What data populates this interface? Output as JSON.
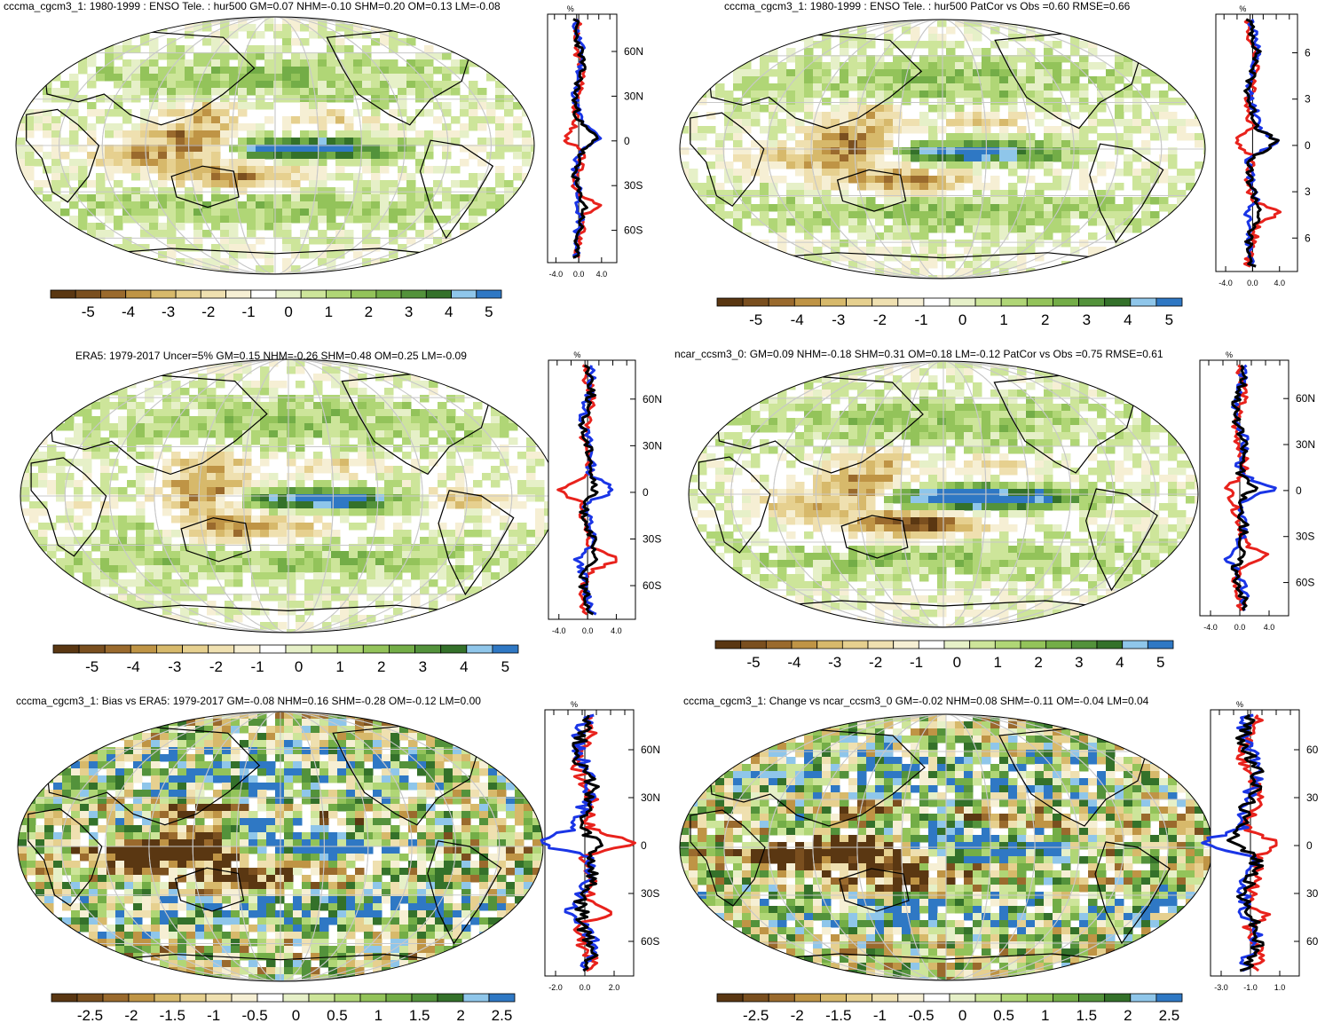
{
  "panels": [
    {
      "id": "p1",
      "title": "cccma_cgcm3_1: 1980-1999 : ENSO Tele. : hur500 GM=0.07 NHM=-0.10 SHM=0.20 OM=0.13 LM=-0.08",
      "colorbar_labels": [
        "-5",
        "-4",
        "-3",
        "-2",
        "-1",
        "0",
        "1",
        "2",
        "3",
        "4",
        "5"
      ],
      "profile_unit": "%",
      "profile_lat_labels": [
        "60N",
        "30N",
        "0",
        "30S",
        "60S"
      ],
      "profile_x_labels": [
        "-4.0",
        "0.0",
        "4.0"
      ]
    },
    {
      "id": "p2",
      "title": "cccma_cgcm3_1: 1980-1999 : ENSO Tele. : hur500 PatCor vs Obs =0.60 RMSE=0.66",
      "colorbar_labels": [
        "-5",
        "-4",
        "-3",
        "-2",
        "-1",
        "0",
        "1",
        "2",
        "3",
        "4",
        "5"
      ],
      "profile_unit": "%",
      "profile_lat_labels": [
        "6",
        "3",
        "0",
        "3",
        "6"
      ],
      "profile_x_labels": [
        "-4.0",
        "0.0",
        "4.0"
      ]
    },
    {
      "id": "p3",
      "title": "ERA5: 1979-2017 Uncer=5% GM=0.15 NHM=-0.26 SHM=0.48 OM=0.25 LM=-0.09",
      "colorbar_labels": [
        "-5",
        "-4",
        "-3",
        "-2",
        "-1",
        "0",
        "1",
        "2",
        "3",
        "4",
        "5"
      ],
      "profile_unit": "%",
      "profile_lat_labels": [
        "60N",
        "30N",
        "0",
        "30S",
        "60S"
      ],
      "profile_x_labels": [
        "-4.0",
        "0.0",
        "4.0"
      ]
    },
    {
      "id": "p4",
      "title": "ncar_ccsm3_0: GM=0.09 NHM=-0.18 SHM=0.31 OM=0.18 LM=-0.12 PatCor vs Obs =0.75 RMSE=0.61",
      "colorbar_labels": [
        "-5",
        "-4",
        "-3",
        "-2",
        "-1",
        "0",
        "1",
        "2",
        "3",
        "4",
        "5"
      ],
      "profile_unit": "%",
      "profile_lat_labels": [
        "60N",
        "30N",
        "0",
        "30S",
        "60S"
      ],
      "profile_x_labels": [
        "-4.0",
        "0.0",
        "4.0"
      ]
    },
    {
      "id": "p5",
      "title": "cccma_cgcm3_1: Bias vs ERA5: 1979-2017 GM=-0.08 NHM=0.16 SHM=-0.28 OM=-0.12 LM=0.00",
      "colorbar_labels": [
        "-2.5",
        "-2",
        "-1.5",
        "-1",
        "-0.5",
        "0",
        "0.5",
        "1",
        "1.5",
        "2",
        "2.5"
      ],
      "profile_unit": "%",
      "profile_lat_labels": [
        "60N",
        "30N",
        "0",
        "30S",
        "60S"
      ],
      "profile_x_labels": [
        "-2.0",
        "0.0",
        "2.0"
      ]
    },
    {
      "id": "p6",
      "title": "cccma_cgcm3_1: Change vs ncar_ccsm3_0 GM=-0.02 NHM=0.08 SHM=-0.11 OM=-0.04 LM=0.04",
      "colorbar_labels": [
        "-2.5",
        "-2",
        "-1.5",
        "-1",
        "-0.5",
        "0",
        "0.5",
        "1",
        "1.5",
        "2",
        "2.5"
      ],
      "profile_unit": "%",
      "profile_lat_labels": [
        "60",
        "30",
        "0",
        "30",
        "60"
      ],
      "profile_x_labels": [
        "-3.0",
        "-1.0",
        "1.0"
      ]
    }
  ],
  "colors": {
    "palette": [
      "#5a3712",
      "#7a4f1f",
      "#9a6a2d",
      "#bf9445",
      "#d7b96b",
      "#e6d08f",
      "#efe0b0",
      "#f6efd4",
      "#ffffff",
      "#e6f0c8",
      "#cde59a",
      "#b0d676",
      "#93c35a",
      "#73ad47",
      "#53923b",
      "#34712a",
      "#8fc6ea",
      "#2f78c4"
    ],
    "ocean": "#ffffff",
    "coast": "#000000",
    "grid": "#c8c8c8",
    "profile_model": "#e8221c",
    "profile_obs": "#1a35e6",
    "profile_total": "#000000"
  }
}
